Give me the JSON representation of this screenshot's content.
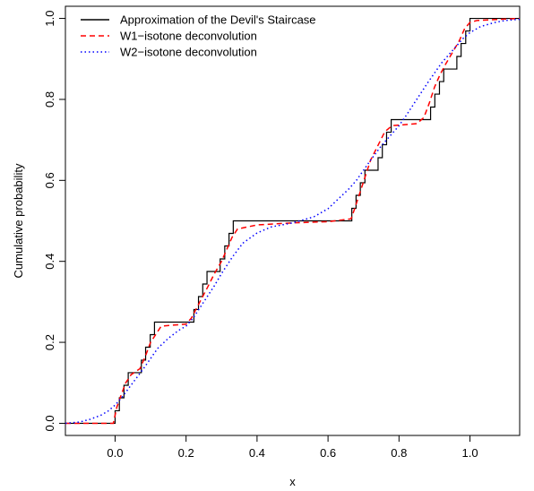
{
  "chart_data": {
    "type": "line",
    "title": "",
    "xlabel": "x",
    "ylabel": "Cumulative probability",
    "xlim": [
      -0.14,
      1.14
    ],
    "ylim": [
      -0.03,
      1.03
    ],
    "x_ticks": [
      0.0,
      0.2,
      0.4,
      0.6,
      0.8,
      1.0
    ],
    "x_tick_labels": [
      "0.0",
      "0.2",
      "0.4",
      "0.6",
      "0.8",
      "1.0"
    ],
    "y_ticks": [
      0.0,
      0.2,
      0.4,
      0.6,
      0.8,
      1.0
    ],
    "y_tick_labels": [
      "0.0",
      "0.2",
      "0.4",
      "0.6",
      "0.8",
      "1.0"
    ],
    "grid": false,
    "legend_position": "top-left",
    "series": [
      {
        "name": "Approximation of the Devil's Staircase",
        "color": "#000000",
        "dash": "solid",
        "x": [
          -0.14,
          0.0,
          0.0,
          0.012,
          0.012,
          0.025,
          0.025,
          0.037,
          0.037,
          0.074,
          0.074,
          0.086,
          0.086,
          0.099,
          0.099,
          0.111,
          0.111,
          0.222,
          0.222,
          0.235,
          0.235,
          0.247,
          0.247,
          0.259,
          0.259,
          0.296,
          0.296,
          0.309,
          0.309,
          0.321,
          0.321,
          0.333,
          0.333,
          0.667,
          0.667,
          0.679,
          0.679,
          0.691,
          0.691,
          0.704,
          0.704,
          0.741,
          0.741,
          0.753,
          0.753,
          0.765,
          0.765,
          0.778,
          0.778,
          0.889,
          0.889,
          0.901,
          0.901,
          0.914,
          0.914,
          0.926,
          0.926,
          0.963,
          0.963,
          0.975,
          0.975,
          0.988,
          0.988,
          1.0,
          1.0,
          1.14
        ],
        "y": [
          0.0,
          0.0,
          0.031,
          0.031,
          0.063,
          0.063,
          0.094,
          0.094,
          0.125,
          0.125,
          0.156,
          0.156,
          0.188,
          0.188,
          0.219,
          0.219,
          0.25,
          0.25,
          0.281,
          0.281,
          0.313,
          0.313,
          0.344,
          0.344,
          0.375,
          0.375,
          0.406,
          0.406,
          0.438,
          0.438,
          0.469,
          0.469,
          0.5,
          0.5,
          0.531,
          0.531,
          0.563,
          0.563,
          0.594,
          0.594,
          0.625,
          0.625,
          0.656,
          0.656,
          0.688,
          0.688,
          0.719,
          0.719,
          0.75,
          0.75,
          0.781,
          0.781,
          0.813,
          0.813,
          0.844,
          0.844,
          0.875,
          0.875,
          0.906,
          0.906,
          0.938,
          0.938,
          0.969,
          0.969,
          1.0,
          1.0
        ]
      },
      {
        "name": "W1−isotone deconvolution",
        "color": "#ff0000",
        "dash": "dashed",
        "x": [
          -0.14,
          -0.005,
          0.005,
          0.015,
          0.03,
          0.045,
          0.07,
          0.085,
          0.1,
          0.115,
          0.13,
          0.2,
          0.215,
          0.23,
          0.245,
          0.26,
          0.28,
          0.3,
          0.315,
          0.33,
          0.345,
          0.4,
          0.5,
          0.6,
          0.665,
          0.675,
          0.69,
          0.705,
          0.72,
          0.74,
          0.76,
          0.78,
          0.85,
          0.87,
          0.885,
          0.9,
          0.915,
          0.93,
          0.95,
          0.97,
          0.985,
          1.0,
          1.02,
          1.14
        ],
        "y": [
          0.0,
          0.0,
          0.04,
          0.065,
          0.1,
          0.12,
          0.135,
          0.165,
          0.2,
          0.22,
          0.24,
          0.245,
          0.26,
          0.285,
          0.31,
          0.335,
          0.37,
          0.4,
          0.43,
          0.46,
          0.48,
          0.49,
          0.495,
          0.498,
          0.505,
          0.53,
          0.57,
          0.61,
          0.65,
          0.685,
          0.72,
          0.735,
          0.74,
          0.755,
          0.79,
          0.83,
          0.86,
          0.885,
          0.915,
          0.945,
          0.975,
          0.99,
          0.995,
          1.0
        ]
      },
      {
        "name": "W2−isotone deconvolution",
        "color": "#0000ff",
        "dash": "dotted",
        "x": [
          -0.14,
          -0.1,
          -0.07,
          -0.04,
          -0.02,
          0.0,
          0.02,
          0.05,
          0.08,
          0.1,
          0.12,
          0.15,
          0.18,
          0.2,
          0.22,
          0.25,
          0.28,
          0.3,
          0.33,
          0.36,
          0.4,
          0.44,
          0.5,
          0.56,
          0.6,
          0.63,
          0.66,
          0.68,
          0.7,
          0.72,
          0.75,
          0.78,
          0.8,
          0.82,
          0.85,
          0.88,
          0.9,
          0.92,
          0.95,
          0.98,
          1.0,
          1.03,
          1.07,
          1.1,
          1.14
        ],
        "y": [
          0.0,
          0.003,
          0.01,
          0.02,
          0.03,
          0.045,
          0.065,
          0.1,
          0.135,
          0.16,
          0.185,
          0.21,
          0.23,
          0.24,
          0.26,
          0.3,
          0.34,
          0.37,
          0.41,
          0.445,
          0.47,
          0.485,
          0.495,
          0.51,
          0.53,
          0.555,
          0.58,
          0.6,
          0.625,
          0.65,
          0.685,
          0.715,
          0.735,
          0.76,
          0.8,
          0.84,
          0.865,
          0.89,
          0.92,
          0.95,
          0.965,
          0.98,
          0.99,
          0.995,
          0.998
        ]
      }
    ]
  }
}
